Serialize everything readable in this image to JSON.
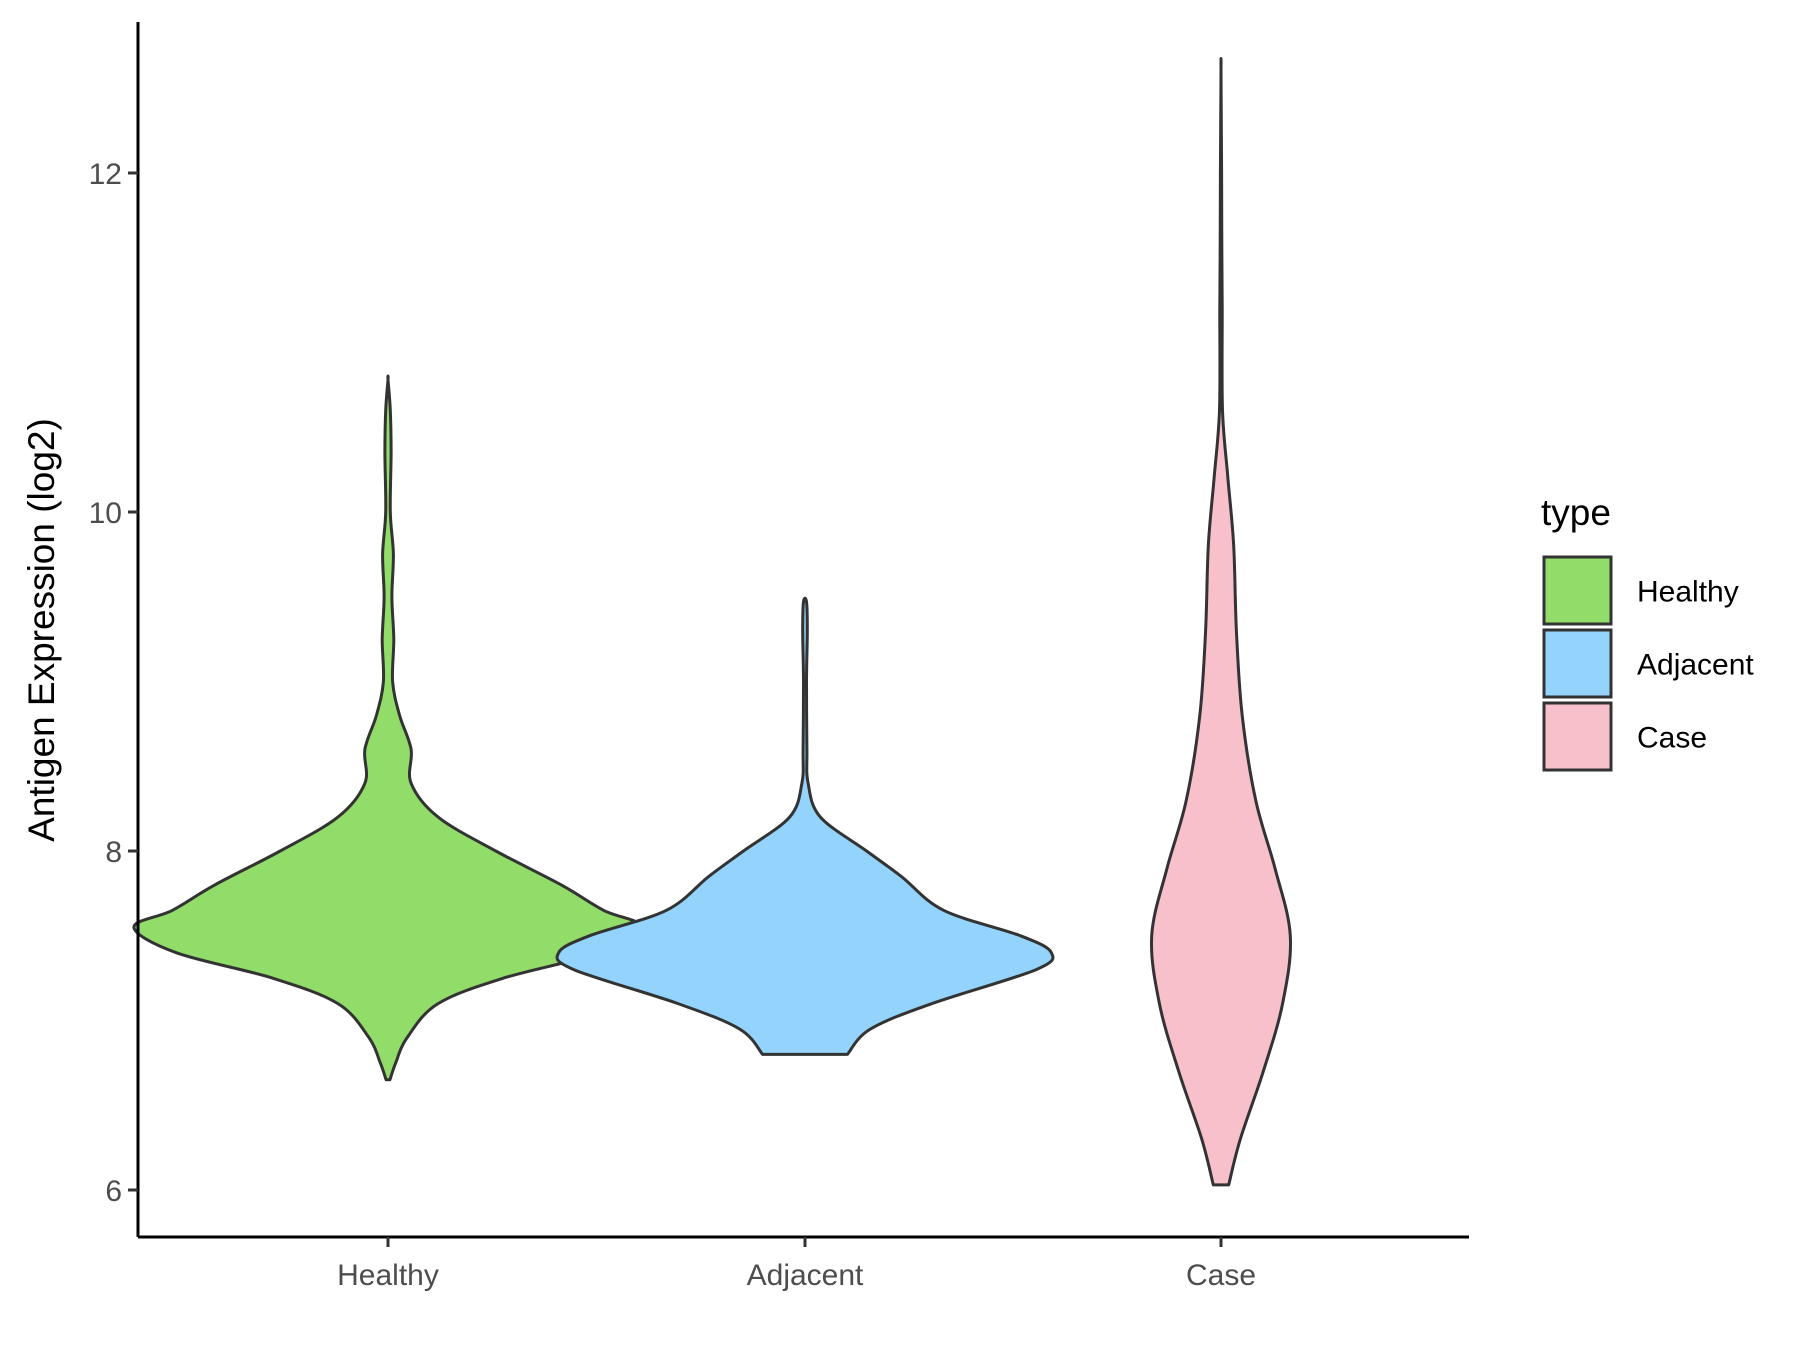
{
  "chart_data": {
    "type": "violin",
    "xlabel": "",
    "ylabel": "Antigen Expression (log2)",
    "ylim": [
      5.7,
      12.9
    ],
    "yticks": [
      6,
      8,
      10,
      12
    ],
    "categories": [
      "Healthy",
      "Adjacent",
      "Case"
    ],
    "grid": false,
    "legend": {
      "title": "type",
      "position": "right",
      "entries": [
        "Healthy",
        "Adjacent",
        "Case"
      ]
    },
    "series": [
      {
        "name": "Healthy",
        "color": "#92DC69",
        "y_min": 6.65,
        "y_max": 10.78,
        "profile": [
          [
            6.65,
            0.005
          ],
          [
            6.75,
            0.02
          ],
          [
            6.9,
            0.05
          ],
          [
            7.1,
            0.13
          ],
          [
            7.25,
            0.3
          ],
          [
            7.4,
            0.55
          ],
          [
            7.55,
            0.66
          ],
          [
            7.65,
            0.56
          ],
          [
            7.8,
            0.45
          ],
          [
            8.0,
            0.28
          ],
          [
            8.2,
            0.13
          ],
          [
            8.4,
            0.06
          ],
          [
            8.6,
            0.06
          ],
          [
            8.8,
            0.03
          ],
          [
            9.0,
            0.012
          ],
          [
            9.25,
            0.015
          ],
          [
            9.5,
            0.01
          ],
          [
            9.75,
            0.014
          ],
          [
            10.0,
            0.006
          ],
          [
            10.35,
            0.008
          ],
          [
            10.6,
            0.006
          ],
          [
            10.78,
            0.0
          ]
        ]
      },
      {
        "name": "Adjacent",
        "color": "#93D3FC",
        "y_min": 6.8,
        "y_max": 9.47,
        "profile": [
          [
            6.8,
            0.11
          ],
          [
            6.95,
            0.17
          ],
          [
            7.1,
            0.33
          ],
          [
            7.3,
            0.6
          ],
          [
            7.4,
            0.64
          ],
          [
            7.5,
            0.56
          ],
          [
            7.65,
            0.36
          ],
          [
            7.85,
            0.25
          ],
          [
            8.0,
            0.16
          ],
          [
            8.2,
            0.04
          ],
          [
            8.4,
            0.008
          ],
          [
            8.6,
            0.005
          ],
          [
            9.0,
            0.004
          ],
          [
            9.3,
            0.006
          ],
          [
            9.47,
            0.004
          ]
        ]
      },
      {
        "name": "Case",
        "color": "#F7C0CB",
        "y_min": 6.03,
        "y_max": 12.6,
        "profile": [
          [
            6.03,
            0.02
          ],
          [
            6.3,
            0.05
          ],
          [
            6.7,
            0.11
          ],
          [
            7.1,
            0.16
          ],
          [
            7.5,
            0.18
          ],
          [
            7.9,
            0.14
          ],
          [
            8.3,
            0.09
          ],
          [
            8.8,
            0.055
          ],
          [
            9.3,
            0.04
          ],
          [
            9.8,
            0.033
          ],
          [
            10.2,
            0.018
          ],
          [
            10.6,
            0.004
          ],
          [
            11.2,
            0.003
          ],
          [
            11.6,
            0.002
          ],
          [
            12.0,
            0.0015
          ],
          [
            12.6,
            0.0
          ]
        ]
      }
    ]
  }
}
